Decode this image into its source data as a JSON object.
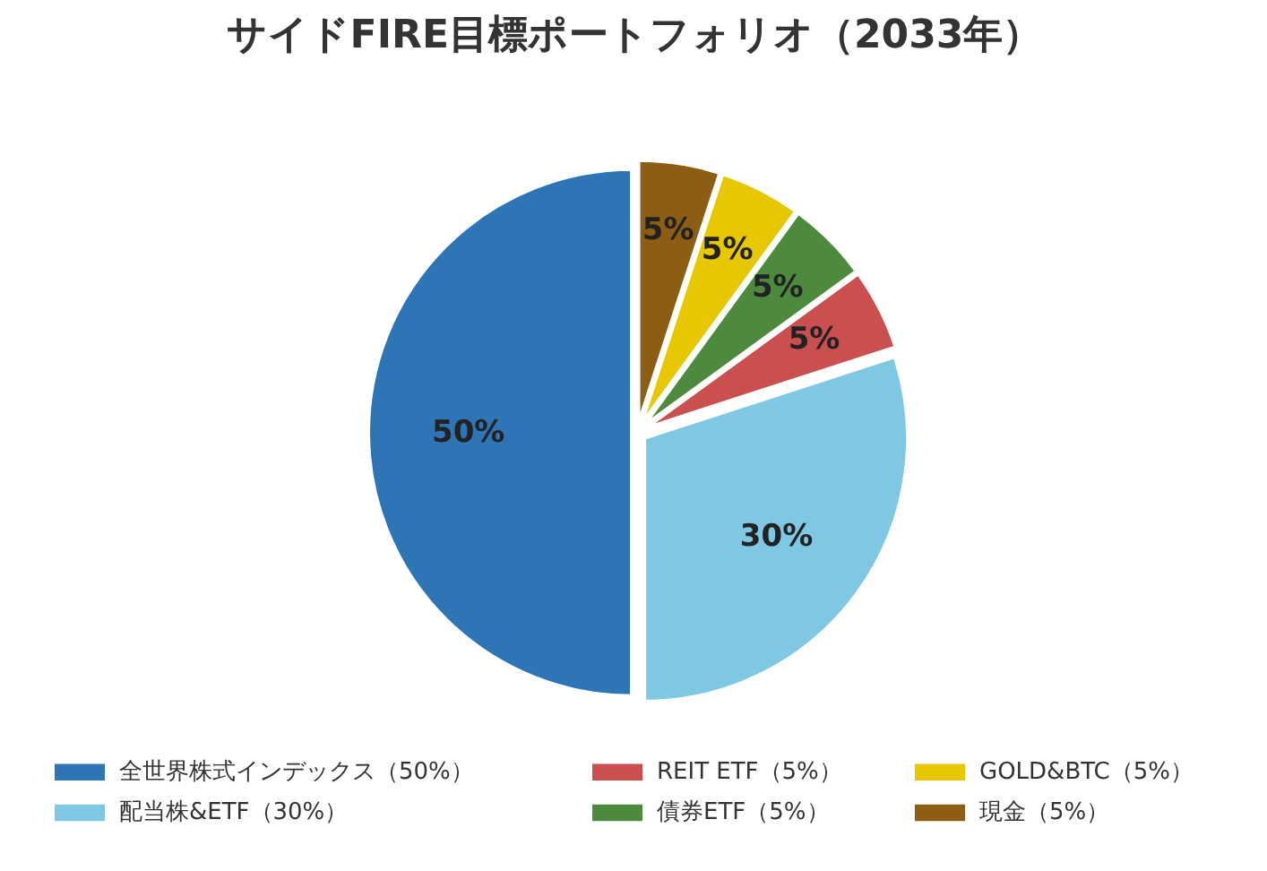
{
  "chart_data": {
    "type": "pie",
    "title": "サイドFIRE目標ポートフォリオ（2033年）",
    "categories": [
      "全世界株式インデックス（50%）",
      "配当株&ETF（30%）",
      "REIT ETF（5%）",
      "債券ETF（5%）",
      "GOLD&BTC（5%）",
      "現金（5%）"
    ],
    "values": [
      50,
      30,
      5,
      5,
      5,
      5
    ],
    "colors": [
      "#2e75b6",
      "#7ec8e3",
      "#c9504f",
      "#4e8a3e",
      "#e6c700",
      "#8b5e14"
    ],
    "value_labels": [
      "50%",
      "30%",
      "5%",
      "5%",
      "5%",
      "5%"
    ],
    "legend": "bottom"
  }
}
